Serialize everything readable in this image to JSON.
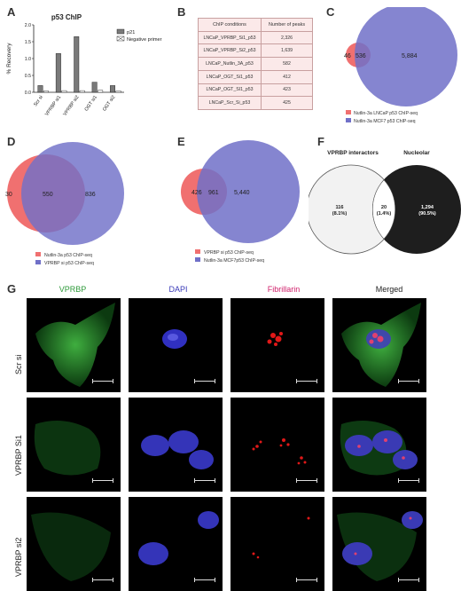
{
  "panels": {
    "A": "A",
    "B": "B",
    "C": "C",
    "D": "D",
    "E": "E",
    "F": "F",
    "G": "G"
  },
  "chart_data": {
    "type": "bar",
    "title": "p53 ChIP",
    "ylabel": "% Recovery",
    "xlabel": "",
    "categories": [
      "Scr si",
      "VPRBP si1",
      "VPRBP si2",
      "OGT si1",
      "OGT si2"
    ],
    "ylim": [
      0,
      2.0
    ],
    "yticks": [
      "0.0",
      "0.5",
      "1.0",
      "1.5",
      "2.0"
    ],
    "legend_position": "top-right",
    "series": [
      {
        "name": "p21",
        "values": [
          0.2,
          1.15,
          1.65,
          0.3,
          0.2
        ],
        "color": "#7a7a7a"
      },
      {
        "name": "Negative primer",
        "values": [
          0.04,
          0.05,
          0.05,
          0.06,
          0.04
        ],
        "color": "#333333"
      }
    ]
  },
  "tableB": {
    "headers": [
      "ChIP conditions",
      "Number of peaks"
    ],
    "rows": [
      [
        "LNCaP_VPRBP_Si1_p53",
        "2,326"
      ],
      [
        "LNCaP_VPRBP_Si2_p53",
        "1,639"
      ],
      [
        "LNCaP_Nutlin_3A_p53",
        "582"
      ],
      [
        "LNCaP_OGT_Si1_p53",
        "412"
      ],
      [
        "LNCaP_OGT_SI1_p53",
        "423"
      ],
      [
        "LNCaP_Scr_Si_p53",
        "425"
      ]
    ]
  },
  "vennC": {
    "left_only": "46",
    "overlap": "536",
    "right_only": "5,884",
    "legend": [
      "Nutlin-3a  LNCaP p53 ChIP-seq",
      "Nutlin-3a  MCF7 p53 ChIP-seq"
    ]
  },
  "vennD": {
    "left_only": "30",
    "overlap": "550",
    "right_only": "836",
    "legend": [
      "Nutlin-3a  p53 ChIP-seq",
      "VPRBP si p53 ChIP-seq"
    ]
  },
  "vennE": {
    "left_only": "426",
    "overlap": "961",
    "right_only": "5,440",
    "legend": [
      "VPRBP si p53 ChIP-seq",
      "Nutlin-3a  MCF7p53 ChIP-seq"
    ]
  },
  "vennF": {
    "left_title": "VPRBP interactors",
    "right_title": "Nucleolar",
    "left_count": "116",
    "left_pct": "(8.1%)",
    "mid_count": "20",
    "mid_pct": "(1.4%)",
    "right_count": "1,294",
    "right_pct": "(90.5%)"
  },
  "microscopy": {
    "columns": [
      "VPRBP",
      "DAPI",
      "Fibrillarin",
      "Merged"
    ],
    "column_colors": [
      "#2e9a3a",
      "#3a3ab8",
      "#d0206a",
      "#222222"
    ],
    "rows": [
      "Scr si",
      "VPRBP Si1",
      "VPRBP si2"
    ]
  }
}
